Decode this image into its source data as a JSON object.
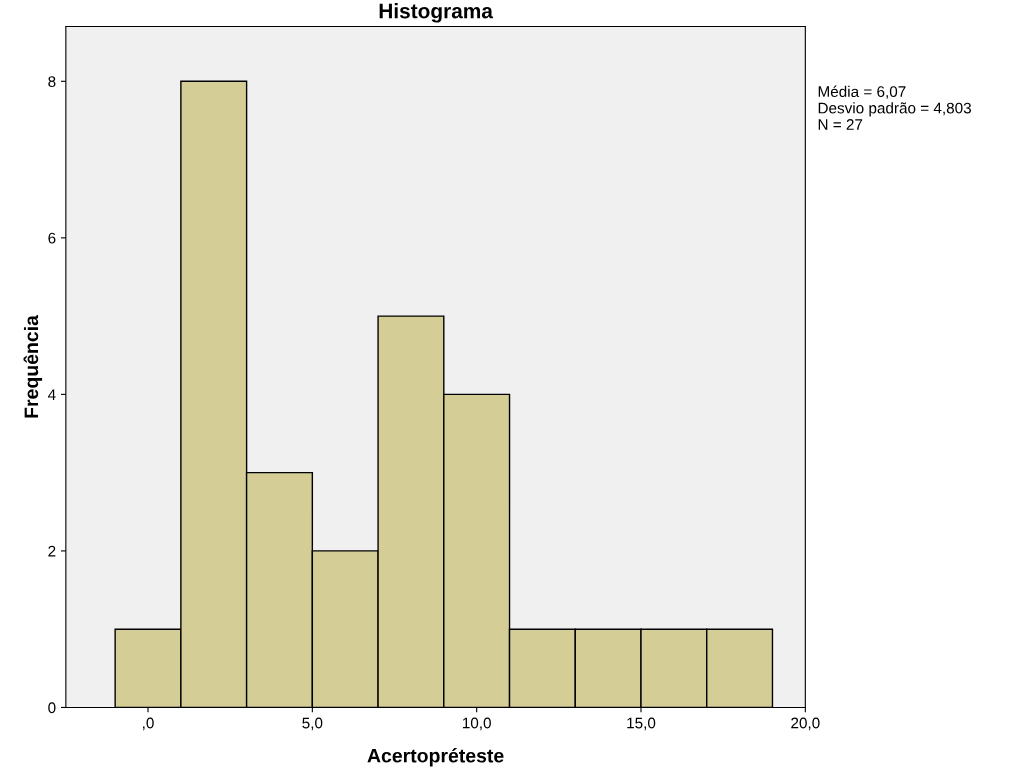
{
  "chart_data": {
    "type": "histogram",
    "title": "Histograma",
    "xlabel": "Acertopréteste",
    "ylabel": "Frequência",
    "bins": [
      -1,
      1,
      3,
      5,
      7,
      9,
      11,
      13,
      15,
      17,
      19
    ],
    "values": [
      1,
      8,
      3,
      2,
      5,
      4,
      1,
      1,
      1,
      1
    ],
    "color": "#d4cd96",
    "xlim": [
      -2.5,
      20
    ],
    "xticks": [
      {
        "value": 0,
        "label": ",0"
      },
      {
        "value": 5,
        "label": "5,0"
      },
      {
        "value": 10,
        "label": "10,0"
      },
      {
        "value": 15,
        "label": "15,0"
      },
      {
        "value": 20,
        "label": "20,0"
      }
    ],
    "ylim": [
      0,
      8.7
    ],
    "yticks": [
      0,
      2,
      4,
      6,
      8
    ],
    "grid": false,
    "legend": false,
    "annotations": [
      "Média = 6,07\nDesvio padrão = 4,803\nN = 27"
    ]
  }
}
